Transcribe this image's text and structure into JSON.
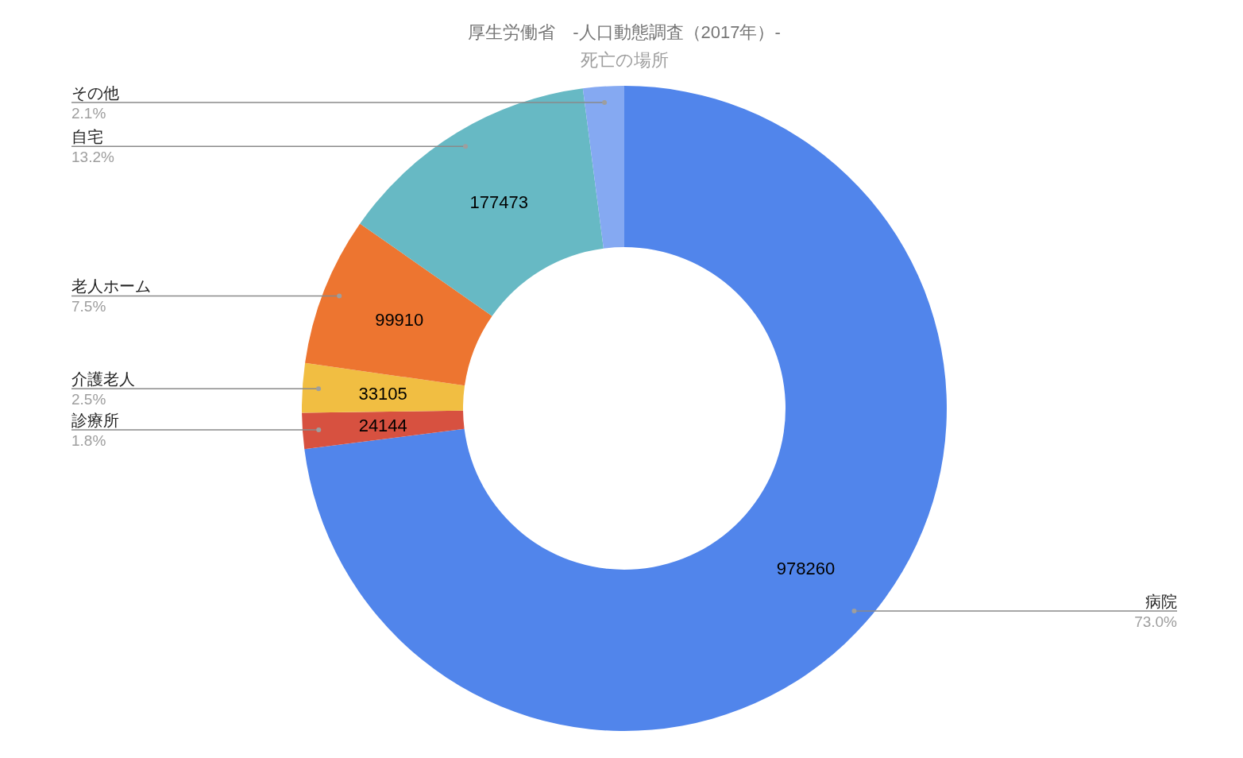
{
  "chart_data": {
    "type": "donut",
    "title": "厚生労働省　-人口動態調査（2017年）-",
    "subtitle": "死亡の場所",
    "categories": [
      "病院",
      "診療所",
      "介護老人",
      "老人ホーム",
      "自宅",
      "その他"
    ],
    "values": [
      978260,
      24144,
      33105,
      99910,
      177473,
      27505
    ],
    "colors": [
      "#5185eb",
      "#d75140",
      "#f1be42",
      "#ed7530",
      "#67b9c4",
      "#85a9f2"
    ],
    "value_labels": [
      "978260",
      "24144",
      "33105",
      "99910",
      "177473",
      null
    ],
    "annotations": [
      {
        "text": "73.0%",
        "x": "病院"
      },
      {
        "text": "1.8%",
        "x": "診療所"
      },
      {
        "text": "2.5%",
        "x": "介護老人"
      },
      {
        "text": "7.5%",
        "x": "老人ホーム"
      },
      {
        "text": "13.2%",
        "x": "自宅"
      },
      {
        "text": "2.1%",
        "x": "その他"
      }
    ]
  }
}
